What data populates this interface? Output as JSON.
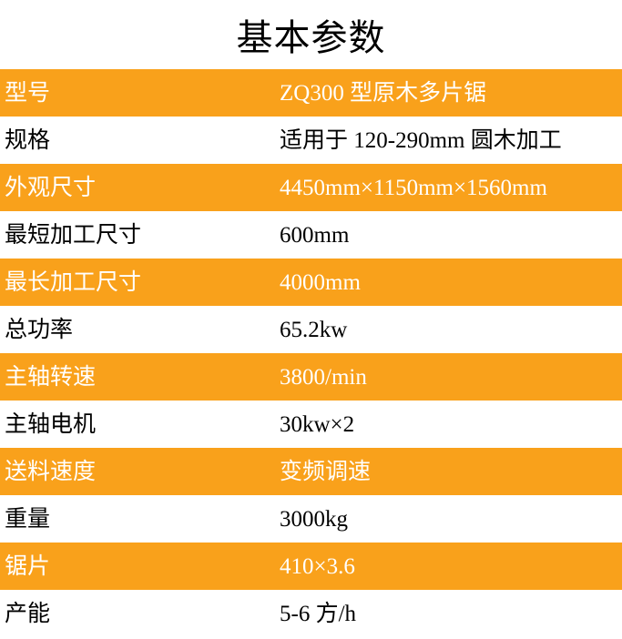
{
  "title": "基本参数",
  "colors": {
    "row_orange": "#f9a11b",
    "row_white": "#ffffff",
    "text_on_orange": "#ffffff",
    "text_on_white": "#000000"
  },
  "table": {
    "rows": [
      {
        "label": "型号",
        "value": "ZQ300 型原木多片锯",
        "highlighted": true
      },
      {
        "label": "规格",
        "value": "适用于 120-290mm 圆木加工",
        "highlighted": false
      },
      {
        "label": "外观尺寸",
        "value": "4450mm×1150mm×1560mm",
        "highlighted": true
      },
      {
        "label": "最短加工尺寸",
        "value": "600mm",
        "highlighted": false
      },
      {
        "label": "最长加工尺寸",
        "value": "4000mm",
        "highlighted": true
      },
      {
        "label": "总功率",
        "value": "65.2kw",
        "highlighted": false
      },
      {
        "label": "主轴转速",
        "value": "3800/min",
        "highlighted": true
      },
      {
        "label": "主轴电机",
        "value": "30kw×2",
        "highlighted": false
      },
      {
        "label": "送料速度",
        "value": "变频调速",
        "highlighted": true
      },
      {
        "label": "重量",
        "value": "3000kg",
        "highlighted": false
      },
      {
        "label": "锯片",
        "value": "410×3.6",
        "highlighted": true
      },
      {
        "label": "产能",
        "value": "5-6 方/h",
        "highlighted": false
      }
    ]
  }
}
